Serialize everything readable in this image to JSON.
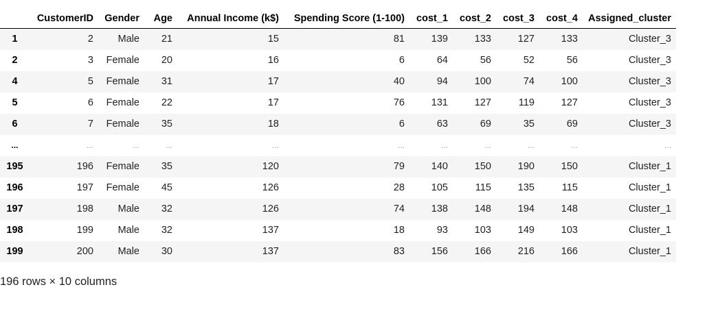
{
  "table": {
    "columns": [
      "",
      "CustomerID",
      "Gender",
      "Age",
      "Annual Income (k$)",
      "Spending Score (1-100)",
      "cost_1",
      "cost_2",
      "cost_3",
      "cost_4",
      "Assigned_cluster"
    ],
    "rows": [
      [
        "1",
        "2",
        "Male",
        "21",
        "15",
        "81",
        "139",
        "133",
        "127",
        "133",
        "Cluster_3"
      ],
      [
        "2",
        "3",
        "Female",
        "20",
        "16",
        "6",
        "64",
        "56",
        "52",
        "56",
        "Cluster_3"
      ],
      [
        "4",
        "5",
        "Female",
        "31",
        "17",
        "40",
        "94",
        "100",
        "74",
        "100",
        "Cluster_3"
      ],
      [
        "5",
        "6",
        "Female",
        "22",
        "17",
        "76",
        "131",
        "127",
        "119",
        "127",
        "Cluster_3"
      ],
      [
        "6",
        "7",
        "Female",
        "35",
        "18",
        "6",
        "63",
        "69",
        "35",
        "69",
        "Cluster_3"
      ],
      [
        "...",
        "...",
        "...",
        "...",
        "...",
        "...",
        "...",
        "...",
        "...",
        "...",
        "..."
      ],
      [
        "195",
        "196",
        "Female",
        "35",
        "120",
        "79",
        "140",
        "150",
        "190",
        "150",
        "Cluster_1"
      ],
      [
        "196",
        "197",
        "Female",
        "45",
        "126",
        "28",
        "105",
        "115",
        "135",
        "115",
        "Cluster_1"
      ],
      [
        "197",
        "198",
        "Male",
        "32",
        "126",
        "74",
        "138",
        "148",
        "194",
        "148",
        "Cluster_1"
      ],
      [
        "198",
        "199",
        "Male",
        "32",
        "137",
        "18",
        "93",
        "103",
        "149",
        "103",
        "Cluster_1"
      ],
      [
        "199",
        "200",
        "Male",
        "30",
        "137",
        "83",
        "156",
        "166",
        "216",
        "166",
        "Cluster_1"
      ]
    ]
  },
  "caption": "196 rows × 10 columns"
}
